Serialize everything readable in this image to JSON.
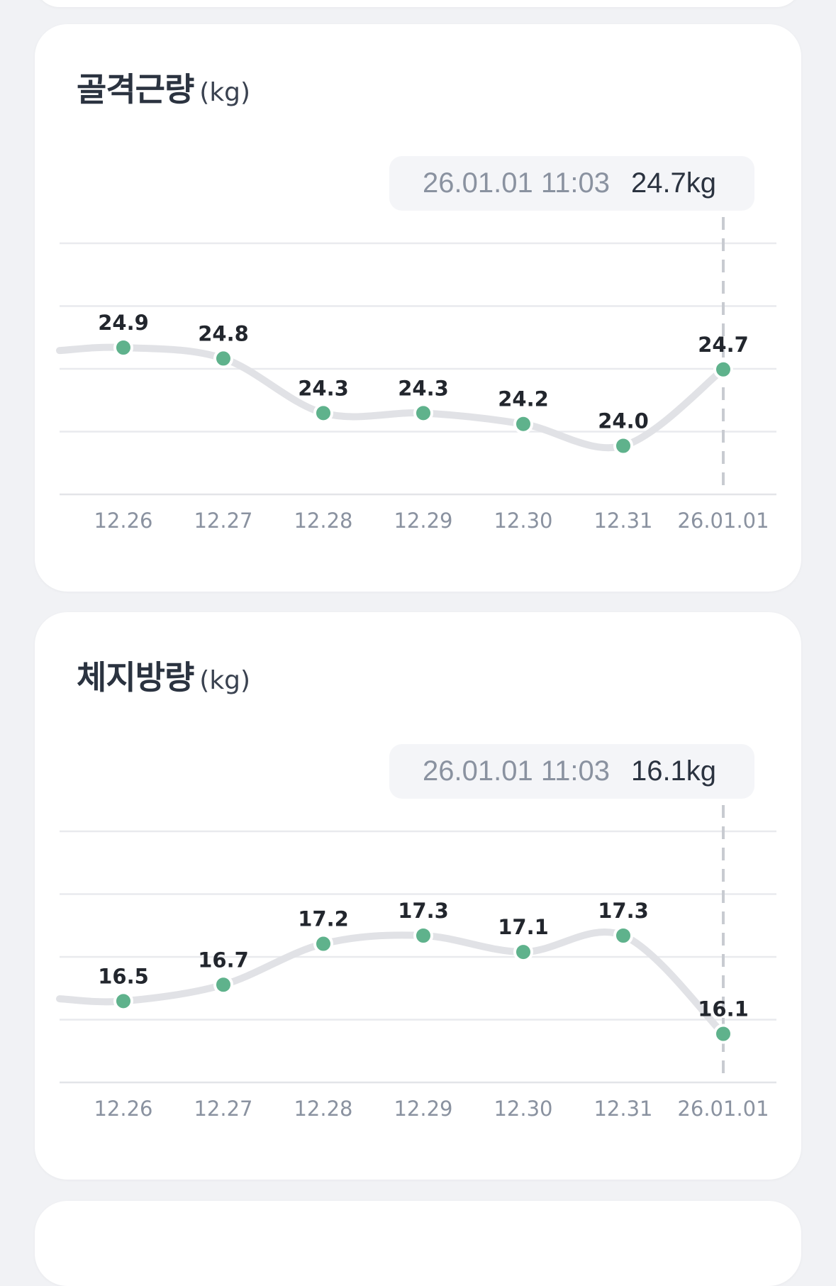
{
  "charts": [
    {
      "title": "골격근량",
      "unit": "(kg)",
      "tooltip": {
        "datetime": "26.01.01 11:03",
        "value": "24.7kg"
      },
      "chart_data": {
        "type": "line",
        "title": "골격근량",
        "ylabel": "(kg)",
        "categories": [
          "12.26",
          "12.27",
          "12.28",
          "12.29",
          "12.30",
          "12.31",
          "26.01.01"
        ],
        "series": [
          {
            "values": [
              24.9,
              24.8,
              24.3,
              24.3,
              24.2,
              24.0,
              24.7
            ]
          }
        ],
        "point_labels": [
          "24.9",
          "24.8",
          "24.3",
          "24.3",
          "24.2",
          "24.0",
          "24.7"
        ],
        "selected_index": 6,
        "grid": true,
        "colors": {
          "point": "#5fb28c",
          "line": "#e1e2e6"
        }
      }
    },
    {
      "title": "체지방량",
      "unit": "(kg)",
      "tooltip": {
        "datetime": "26.01.01 11:03",
        "value": "16.1kg"
      },
      "chart_data": {
        "type": "line",
        "title": "체지방량",
        "ylabel": "(kg)",
        "categories": [
          "12.26",
          "12.27",
          "12.28",
          "12.29",
          "12.30",
          "12.31",
          "26.01.01"
        ],
        "series": [
          {
            "values": [
              16.5,
              16.7,
              17.2,
              17.3,
              17.1,
              17.3,
              16.1
            ]
          }
        ],
        "point_labels": [
          "16.5",
          "16.7",
          "17.2",
          "17.3",
          "17.1",
          "17.3",
          "16.1"
        ],
        "selected_index": 6,
        "grid": true,
        "colors": {
          "point": "#5fb28c",
          "line": "#e1e2e6"
        }
      }
    }
  ]
}
